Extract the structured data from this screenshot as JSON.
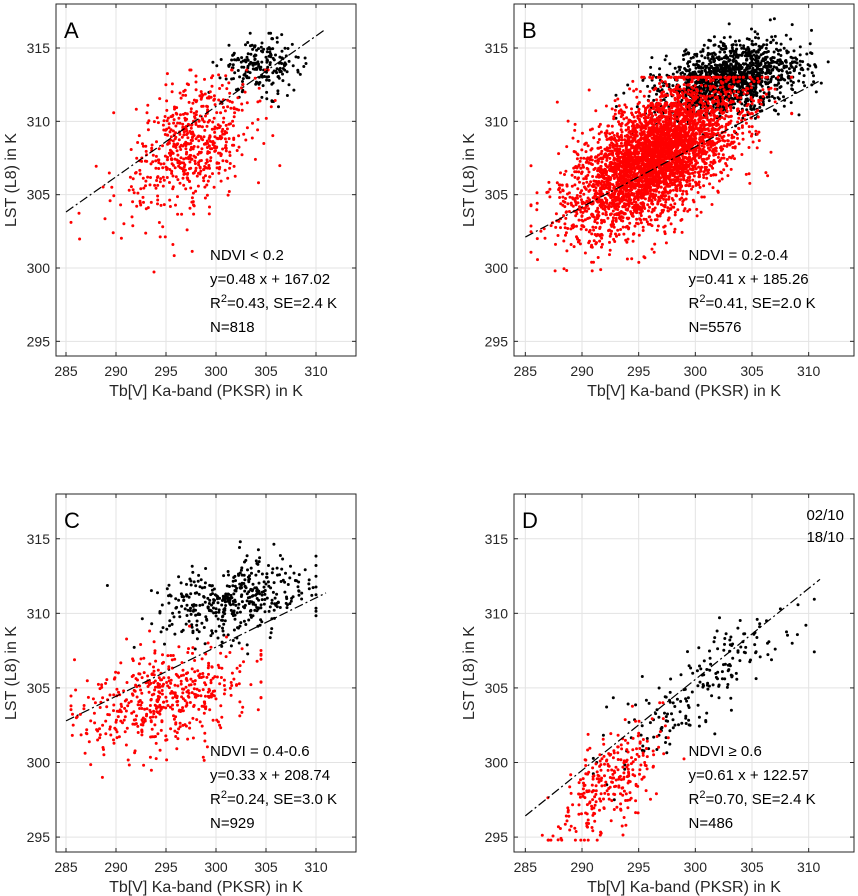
{
  "chart_data": [
    {
      "type": "scatter",
      "panel": "A",
      "xlabel": "Tb[V] Ka-band (PKSR) in K",
      "ylabel": "LST (L8) in K",
      "xlim": [
        284,
        314
      ],
      "ylim": [
        294,
        318
      ],
      "xticks": [
        285,
        290,
        295,
        300,
        305,
        310
      ],
      "yticks": [
        295,
        300,
        305,
        310,
        315
      ],
      "grid": true,
      "annotation": {
        "ndvi": "NDVI < 0.2",
        "equation": "y=0.48 x + 167.02",
        "r2_prefix": "R",
        "r2_sup": "2",
        "r2_suffix": "=0.43, SE=2.4 K",
        "n": "N=818"
      },
      "fit": {
        "slope": 0.48,
        "intercept": 167.02,
        "x_range": [
          285,
          311
        ]
      },
      "series": [
        {
          "name": "02/10",
          "color": "#000000",
          "count": 210,
          "x_center": 304.5,
          "x_spread": 2.0,
          "y_center": 313.8,
          "y_spread": 0.9,
          "y_slope": 0.0,
          "x_range": [
            299,
            309
          ],
          "y_range": [
            311,
            316
          ]
        },
        {
          "name": "18/10",
          "color": "#ff0000",
          "count": 608,
          "x_center": 297.5,
          "x_spread": 3.2,
          "y_center": 308.2,
          "y_spread": 2.1,
          "y_slope": 0.35,
          "x_range": [
            285.5,
            309.5
          ],
          "y_range": [
            296.3,
            313.5
          ]
        }
      ]
    },
    {
      "type": "scatter",
      "panel": "B",
      "xlabel": "Tb[V] Ka-band (PKSR) in K",
      "ylabel": "LST (L8) in K",
      "xlim": [
        284,
        314
      ],
      "ylim": [
        294,
        318
      ],
      "xticks": [
        285,
        290,
        295,
        300,
        305,
        310
      ],
      "yticks": [
        295,
        300,
        305,
        310,
        315
      ],
      "grid": true,
      "annotation": {
        "ndvi": "NDVI = 0.2-0.4",
        "equation": "y=0.41 x + 185.26",
        "r2_prefix": "R",
        "r2_sup": "2",
        "r2_suffix": "=0.41, SE=2.0 K",
        "n": "N=5576"
      },
      "fit": {
        "slope": 0.41,
        "intercept": 185.26,
        "x_range": [
          285,
          311
        ]
      },
      "series": [
        {
          "name": "02/10",
          "color": "#000000",
          "count": 1500,
          "x_center": 303.0,
          "x_spread": 3.0,
          "y_center": 312.8,
          "y_spread": 1.2,
          "y_slope": 0.15,
          "x_range": [
            293,
            313.5
          ],
          "y_range": [
            308.5,
            317
          ]
        },
        {
          "name": "18/10",
          "color": "#ff0000",
          "count": 4076,
          "x_center": 296.5,
          "x_spread": 3.6,
          "y_center": 307.6,
          "y_spread": 2.0,
          "y_slope": 0.4,
          "x_range": [
            285.5,
            308.5
          ],
          "y_range": [
            299.8,
            313
          ]
        }
      ]
    },
    {
      "type": "scatter",
      "panel": "C",
      "xlabel": "Tb[V] Ka-band (PKSR) in K",
      "ylabel": "LST (L8) in K",
      "xlim": [
        284,
        314
      ],
      "ylim": [
        294,
        318
      ],
      "xticks": [
        285,
        290,
        295,
        300,
        305,
        310
      ],
      "yticks": [
        295,
        300,
        305,
        310,
        315
      ],
      "grid": true,
      "annotation": {
        "ndvi": "NDVI = 0.4-0.6",
        "equation": "y=0.33 x + 208.74",
        "r2_prefix": "R",
        "r2_sup": "2",
        "r2_suffix": "=0.24, SE=3.0 K",
        "n": "N=929"
      },
      "fit": {
        "slope": 0.33,
        "intercept": 208.74,
        "x_range": [
          285,
          311
        ]
      },
      "series": [
        {
          "name": "02/10",
          "color": "#000000",
          "count": 430,
          "x_center": 301.5,
          "x_spread": 3.8,
          "y_center": 310.8,
          "y_spread": 1.3,
          "y_slope": 0.1,
          "x_range": [
            285,
            310
          ],
          "y_range": [
            306,
            315
          ]
        },
        {
          "name": "18/10",
          "color": "#ff0000",
          "count": 499,
          "x_center": 294.5,
          "x_spread": 4.2,
          "y_center": 304.3,
          "y_spread": 1.6,
          "y_slope": 0.15,
          "x_range": [
            285.5,
            304.5
          ],
          "y_range": [
            299,
            309.5
          ]
        }
      ]
    },
    {
      "type": "scatter",
      "panel": "D",
      "xlabel": "Tb[V] Ka-band (PKSR) in K",
      "ylabel": "LST (L8) in K",
      "xlim": [
        284,
        314
      ],
      "ylim": [
        294,
        318
      ],
      "xticks": [
        285,
        290,
        295,
        300,
        305,
        310
      ],
      "yticks": [
        295,
        300,
        305,
        310,
        315
      ],
      "grid": true,
      "annotation": {
        "ndvi": "NDVI ≥ 0.6",
        "equation": "y=0.61 x + 122.57",
        "r2_prefix": "R",
        "r2_sup": "2",
        "r2_suffix": "=0.70, SE=2.4 K",
        "n": "N=486"
      },
      "fit": {
        "slope": 0.61,
        "intercept": 122.57,
        "x_range": [
          285,
          311
        ]
      },
      "legend": {
        "placement": "top-right",
        "entries": [
          "02/10",
          "18/10"
        ]
      },
      "series": [
        {
          "name": "02/10",
          "color": "#000000",
          "count": 200,
          "x_center": 300.5,
          "x_spread": 4.2,
          "y_center": 305.0,
          "y_spread": 1.5,
          "y_slope": 0.6,
          "x_range": [
            291,
            310.5
          ],
          "y_range": [
            297.5,
            311.5
          ]
        },
        {
          "name": "18/10",
          "color": "#ff0000",
          "count": 286,
          "x_center": 292.3,
          "x_spread": 2.3,
          "y_center": 298.6,
          "y_spread": 1.6,
          "y_slope": 0.55,
          "x_range": [
            286.5,
            299
          ],
          "y_range": [
            294.8,
            304
          ]
        }
      ]
    }
  ]
}
